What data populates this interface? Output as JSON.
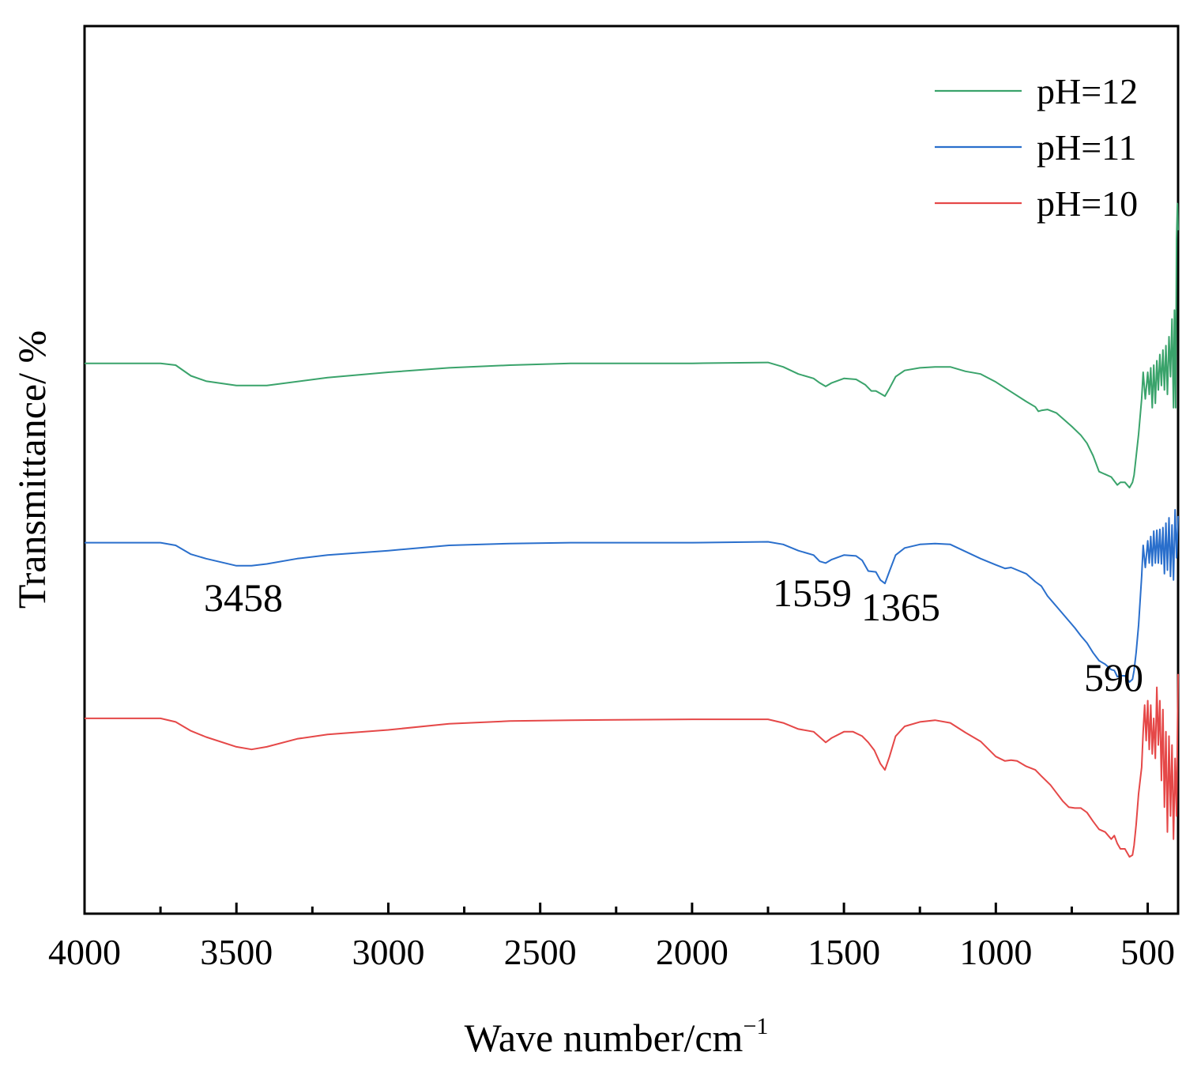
{
  "chart_data": {
    "type": "line",
    "title": "",
    "xlabel": "Wave number/cm",
    "xlabel_sup": "−1",
    "ylabel": "Transmittance/ %",
    "x_reversed": true,
    "xlim": [
      4000,
      400
    ],
    "ylim": [
      0,
      100
    ],
    "x_ticks": [
      4000,
      3500,
      3000,
      2500,
      2000,
      1500,
      1000,
      500
    ],
    "x_tick_labels": [
      "4000",
      "3500",
      "3000",
      "2500",
      "2000",
      "1500",
      "1000",
      "500"
    ],
    "y_ticks_shown": false,
    "legend_position": "top-right",
    "series": [
      {
        "name": "pH=12",
        "color": "#3aa36b",
        "points": [
          [
            4000,
            62
          ],
          [
            3750,
            62
          ],
          [
            3700,
            61.8
          ],
          [
            3650,
            60.6
          ],
          [
            3600,
            60
          ],
          [
            3500,
            59.5
          ],
          [
            3400,
            59.5
          ],
          [
            3200,
            60.4
          ],
          [
            3000,
            61
          ],
          [
            2800,
            61.5
          ],
          [
            2600,
            61.8
          ],
          [
            2400,
            62
          ],
          [
            2000,
            62
          ],
          [
            1750,
            62.1
          ],
          [
            1700,
            61.6
          ],
          [
            1650,
            60.8
          ],
          [
            1600,
            60.3
          ],
          [
            1580,
            59.8
          ],
          [
            1560,
            59.4
          ],
          [
            1540,
            59.8
          ],
          [
            1500,
            60.3
          ],
          [
            1460,
            60.2
          ],
          [
            1430,
            59.6
          ],
          [
            1410,
            58.9
          ],
          [
            1395,
            58.9
          ],
          [
            1380,
            58.6
          ],
          [
            1365,
            58.3
          ],
          [
            1350,
            59.2
          ],
          [
            1330,
            60.5
          ],
          [
            1300,
            61.2
          ],
          [
            1250,
            61.5
          ],
          [
            1200,
            61.6
          ],
          [
            1150,
            61.6
          ],
          [
            1100,
            61.1
          ],
          [
            1050,
            60.8
          ],
          [
            1000,
            59.9
          ],
          [
            950,
            58.8
          ],
          [
            900,
            57.7
          ],
          [
            870,
            57.1
          ],
          [
            860,
            56.6
          ],
          [
            850,
            56.7
          ],
          [
            830,
            56.8
          ],
          [
            800,
            56.4
          ],
          [
            780,
            55.8
          ],
          [
            750,
            54.9
          ],
          [
            720,
            53.9
          ],
          [
            700,
            53
          ],
          [
            680,
            51.6
          ],
          [
            660,
            49.8
          ],
          [
            640,
            49.5
          ],
          [
            620,
            49.2
          ],
          [
            600,
            48.3
          ],
          [
            590,
            48.6
          ],
          [
            575,
            48.6
          ],
          [
            560,
            48
          ],
          [
            550,
            48.6
          ],
          [
            545,
            49.4
          ],
          [
            538,
            51.5
          ],
          [
            530,
            54
          ],
          [
            520,
            58
          ],
          [
            515,
            61
          ],
          [
            508,
            58
          ],
          [
            500,
            61
          ],
          [
            495,
            58.5
          ],
          [
            490,
            61.5
          ],
          [
            485,
            57
          ],
          [
            480,
            61.8
          ],
          [
            475,
            57.5
          ],
          [
            470,
            62.3
          ],
          [
            465,
            59
          ],
          [
            460,
            63
          ],
          [
            455,
            59.5
          ],
          [
            450,
            63.5
          ],
          [
            445,
            59
          ],
          [
            440,
            64
          ],
          [
            435,
            58.5
          ],
          [
            430,
            65
          ],
          [
            425,
            60.5
          ],
          [
            420,
            67
          ],
          [
            415,
            57
          ],
          [
            412,
            68
          ],
          [
            408,
            57
          ],
          [
            405,
            76
          ],
          [
            402,
            80
          ],
          [
            400,
            77
          ]
        ]
      },
      {
        "name": "pH=11",
        "color": "#2a6fcc",
        "points": [
          [
            4000,
            41.8
          ],
          [
            3750,
            41.8
          ],
          [
            3700,
            41.5
          ],
          [
            3650,
            40.5
          ],
          [
            3600,
            40
          ],
          [
            3500,
            39.2
          ],
          [
            3450,
            39.2
          ],
          [
            3400,
            39.4
          ],
          [
            3300,
            40
          ],
          [
            3200,
            40.4
          ],
          [
            3000,
            40.9
          ],
          [
            2800,
            41.5
          ],
          [
            2600,
            41.7
          ],
          [
            2400,
            41.8
          ],
          [
            2000,
            41.8
          ],
          [
            1750,
            41.9
          ],
          [
            1700,
            41.6
          ],
          [
            1650,
            40.9
          ],
          [
            1600,
            40.4
          ],
          [
            1580,
            39.7
          ],
          [
            1560,
            39.5
          ],
          [
            1540,
            39.9
          ],
          [
            1500,
            40.4
          ],
          [
            1460,
            40.3
          ],
          [
            1440,
            39.8
          ],
          [
            1420,
            38.6
          ],
          [
            1395,
            38.5
          ],
          [
            1380,
            37.6
          ],
          [
            1365,
            37.2
          ],
          [
            1350,
            38.6
          ],
          [
            1330,
            40.4
          ],
          [
            1300,
            41.2
          ],
          [
            1250,
            41.6
          ],
          [
            1200,
            41.7
          ],
          [
            1150,
            41.6
          ],
          [
            1100,
            40.8
          ],
          [
            1050,
            40
          ],
          [
            1000,
            39.3
          ],
          [
            970,
            38.9
          ],
          [
            950,
            39
          ],
          [
            900,
            38.3
          ],
          [
            870,
            37.4
          ],
          [
            850,
            36.9
          ],
          [
            830,
            35.8
          ],
          [
            800,
            34.6
          ],
          [
            780,
            33.8
          ],
          [
            760,
            33
          ],
          [
            740,
            32.2
          ],
          [
            720,
            31.3
          ],
          [
            700,
            30.5
          ],
          [
            680,
            29.4
          ],
          [
            660,
            28.5
          ],
          [
            640,
            28.1
          ],
          [
            620,
            27.5
          ],
          [
            610,
            27.4
          ],
          [
            600,
            26.7
          ],
          [
            590,
            26.8
          ],
          [
            575,
            26.8
          ],
          [
            560,
            26.1
          ],
          [
            550,
            26.4
          ],
          [
            545,
            27.4
          ],
          [
            538,
            29.4
          ],
          [
            530,
            32.5
          ],
          [
            520,
            38
          ],
          [
            515,
            41.5
          ],
          [
            508,
            39
          ],
          [
            500,
            42
          ],
          [
            495,
            39.5
          ],
          [
            490,
            42.5
          ],
          [
            485,
            39.2
          ],
          [
            480,
            43.1
          ],
          [
            475,
            39.5
          ],
          [
            470,
            43.2
          ],
          [
            465,
            39.5
          ],
          [
            460,
            43.3
          ],
          [
            455,
            39.4
          ],
          [
            450,
            43.5
          ],
          [
            445,
            38.3
          ],
          [
            440,
            44
          ],
          [
            435,
            38.7
          ],
          [
            430,
            44.6
          ],
          [
            425,
            38
          ],
          [
            420,
            43.8
          ],
          [
            415,
            37.6
          ],
          [
            410,
            45.5
          ],
          [
            405,
            40.1
          ],
          [
            400,
            44.8
          ]
        ]
      },
      {
        "name": "pH=10",
        "color": "#e54848",
        "points": [
          [
            4000,
            22
          ],
          [
            3750,
            22
          ],
          [
            3700,
            21.6
          ],
          [
            3650,
            20.6
          ],
          [
            3600,
            19.9
          ],
          [
            3500,
            18.8
          ],
          [
            3450,
            18.5
          ],
          [
            3400,
            18.8
          ],
          [
            3300,
            19.7
          ],
          [
            3200,
            20.2
          ],
          [
            3000,
            20.7
          ],
          [
            2800,
            21.4
          ],
          [
            2600,
            21.7
          ],
          [
            2400,
            21.8
          ],
          [
            2000,
            21.9
          ],
          [
            1750,
            21.9
          ],
          [
            1700,
            21.5
          ],
          [
            1650,
            20.8
          ],
          [
            1600,
            20.5
          ],
          [
            1580,
            19.9
          ],
          [
            1560,
            19.3
          ],
          [
            1540,
            19.8
          ],
          [
            1500,
            20.5
          ],
          [
            1470,
            20.5
          ],
          [
            1440,
            20
          ],
          [
            1420,
            19.3
          ],
          [
            1400,
            18.4
          ],
          [
            1380,
            16.9
          ],
          [
            1365,
            16.2
          ],
          [
            1350,
            17.7
          ],
          [
            1330,
            20
          ],
          [
            1300,
            21.1
          ],
          [
            1250,
            21.6
          ],
          [
            1200,
            21.8
          ],
          [
            1150,
            21.5
          ],
          [
            1100,
            20.4
          ],
          [
            1050,
            19.4
          ],
          [
            1000,
            17.7
          ],
          [
            970,
            17.2
          ],
          [
            950,
            17.3
          ],
          [
            930,
            17.2
          ],
          [
            900,
            16.6
          ],
          [
            870,
            16.2
          ],
          [
            850,
            15.5
          ],
          [
            820,
            14.5
          ],
          [
            800,
            13.6
          ],
          [
            780,
            12.7
          ],
          [
            760,
            12
          ],
          [
            740,
            11.9
          ],
          [
            720,
            11.9
          ],
          [
            700,
            11.4
          ],
          [
            680,
            10.4
          ],
          [
            660,
            9.5
          ],
          [
            640,
            9.2
          ],
          [
            620,
            8.4
          ],
          [
            610,
            8.8
          ],
          [
            600,
            7.9
          ],
          [
            590,
            7.3
          ],
          [
            575,
            7.3
          ],
          [
            560,
            6.4
          ],
          [
            550,
            6.6
          ],
          [
            545,
            7.7
          ],
          [
            538,
            10
          ],
          [
            530,
            13.5
          ],
          [
            520,
            16.5
          ],
          [
            515,
            20.5
          ],
          [
            510,
            23.5
          ],
          [
            505,
            19.5
          ],
          [
            500,
            24
          ],
          [
            495,
            18.5
          ],
          [
            490,
            23.5
          ],
          [
            485,
            18
          ],
          [
            480,
            22
          ],
          [
            475,
            17.5
          ],
          [
            470,
            25.5
          ],
          [
            465,
            19
          ],
          [
            460,
            24
          ],
          [
            455,
            15
          ],
          [
            450,
            23
          ],
          [
            445,
            12
          ],
          [
            440,
            20.5
          ],
          [
            435,
            9.2
          ],
          [
            430,
            20
          ],
          [
            425,
            11
          ],
          [
            420,
            19
          ],
          [
            415,
            8.4
          ],
          [
            410,
            17.5
          ],
          [
            405,
            11
          ],
          [
            400,
            27
          ]
        ]
      }
    ],
    "annotations": [
      {
        "text": "3458",
        "x": 3458
      },
      {
        "text": "1559",
        "x": 1559
      },
      {
        "text": "1365",
        "x": 1365
      },
      {
        "text": "590",
        "x": 590
      }
    ]
  }
}
